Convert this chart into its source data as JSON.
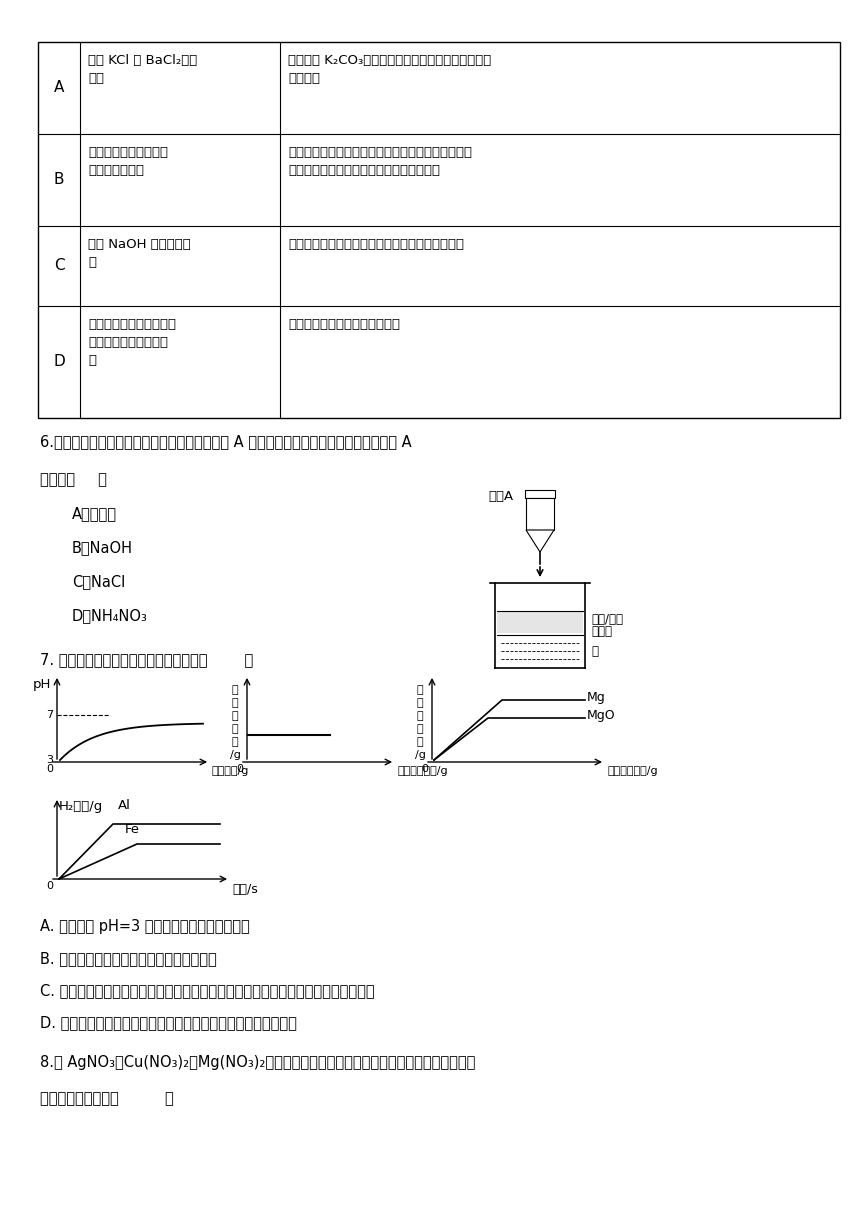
{
  "bg_color": "#ffffff",
  "table_rows": [
    {
      "label": "A",
      "col1": "分离 KCl 和 BaCl₂混合\n溶液",
      "col2": "加入过量 K₂CO₃溶液，过滤，洗涤，再向滤渣中加适\n量稀盐酸"
    },
    {
      "label": "B",
      "col1": "验证并除去氧气中的水\n蒸气和二氧化碳",
      "col2": "将混合气体依次通过足量的无水硫酸铜（遇水由白色\n变蓝色）、浓硫酸、石灰水、氢氧化钠溶液"
    },
    {
      "label": "C",
      "col1": "检验 NaOH 是否完全变\n质",
      "col2": "取样加水后滴加足量稀盐酸，观察是否有气泡冒出"
    },
    {
      "label": "D",
      "col1": "鉴别氢氧化钠、硝酸铵、\n碳酸钙、氯化钠四种固\n体",
      "col2": "分别取样，加足量水，观察现象"
    }
  ],
  "q6_line1": "6.用下图实验研究物质的溶解，烧杯中加入试剂 A 后，观察到试管中液体变浑浊，则试剂 A",
  "q6_line2": "可能为（     ）",
  "q6_opts": [
    "A．稀硫酸",
    "B．NaOH",
    "C．NaCl",
    "D．NH₄NO₃"
  ],
  "q7_line": "7. 下列图象能正确反映其对应关系的是（        ）",
  "q7_optA": "A. 向一定量 pH=3 的硫酸溶液中不断加水稀释",
  "q7_optB": "B. 向一定量的饱和石灰水中不断加入生石灰",
  "q7_optC": "C. 向盛有相同质量的镁和氧化镁的烧杯中分别加入相同溶质质量分数的稀盐酸至过量",
  "q7_optD": "D. 等质量的铁片、铝片分别与足量且质量分数相同的稀硫酸反应",
  "q8_line1": "8.向 AgNO₃、Cu(NO₃)₂、Mg(NO₃)₂的混合溶液中加入一定量的锌粉，充分反应后过滤。下",
  "q8_line2": "列判断不正确的是（          ）"
}
